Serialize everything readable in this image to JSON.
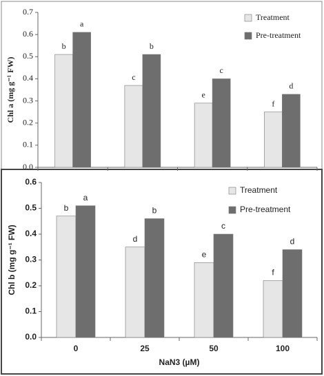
{
  "chart_data": [
    {
      "type": "bar",
      "ylabel": "Chl a (mg g⁻¹ FW)",
      "ylim": [
        0,
        0.7
      ],
      "yticks": [
        {
          "value": 0,
          "label": "0.0"
        },
        0.1,
        0.2,
        0.3,
        0.4,
        0.5,
        0.6,
        0.7
      ],
      "legend": "upper right",
      "series": [
        {
          "name": "Treatment",
          "color": "#e6e6e6",
          "values": [
            0.51,
            0.37,
            0.29,
            0.25
          ],
          "letters": [
            "b",
            "c",
            "e",
            "f"
          ]
        },
        {
          "name": "Pre-treatment",
          "color": "#6e6e6e",
          "values": [
            0.61,
            0.51,
            0.4,
            0.33
          ],
          "letters": [
            "a",
            "b",
            "c",
            "d"
          ]
        }
      ]
    },
    {
      "type": "bar",
      "ylabel": "Chl b (mg g⁻¹ FW)",
      "xlabel": "NaN3 (µM)",
      "categories": [
        "0",
        "25",
        "50",
        "100"
      ],
      "ylim": [
        0,
        0.6
      ],
      "yticks": [
        {
          "value": 0,
          "label": "0.0"
        },
        0.1,
        0.2,
        0.3,
        0.4,
        0.5,
        0.6
      ],
      "legend": "upper right",
      "series": [
        {
          "name": "Treatment",
          "color": "#e6e6e6",
          "values": [
            0.47,
            0.35,
            0.29,
            0.22
          ],
          "letters": [
            "b",
            "d",
            "e",
            "f"
          ]
        },
        {
          "name": "Pre-treatment",
          "color": "#6e6e6e",
          "values": [
            0.51,
            0.46,
            0.4,
            0.34
          ],
          "letters": [
            "a",
            "b",
            "c",
            "d"
          ]
        }
      ]
    }
  ]
}
